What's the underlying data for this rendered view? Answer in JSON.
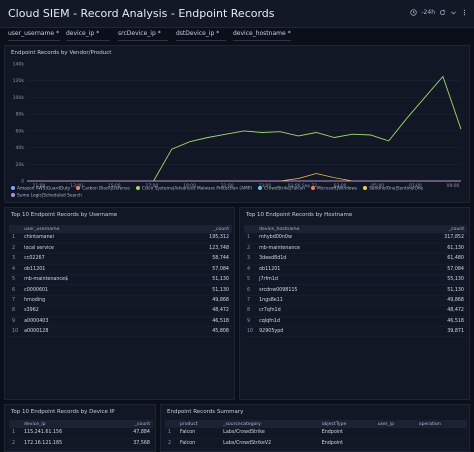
{
  "header": {
    "title": "Cloud SIEM - Record Analysis - Endpoint Records",
    "time_range": "-24h"
  },
  "filters": [
    {
      "label": "user_username"
    },
    {
      "label": "device_ip"
    },
    {
      "label": "srcDevice_ip"
    },
    {
      "label": "dstDevice_ip"
    },
    {
      "label": "device_hostname"
    }
  ],
  "vendor_panel": {
    "title": "Endpoint Records by Vendor/Product",
    "legend": [
      {
        "name": "Amazon AWS|GuardDuty",
        "color": "#7fa6ff"
      },
      {
        "name": "Carbon Black|Defense",
        "color": "#e08a7a"
      },
      {
        "name": "Cisco Systems|Advanced Malware Protection (AMP)",
        "color": "#9fd86b"
      },
      {
        "name": "CrowdStrike|Falcon",
        "color": "#5fc9e6"
      },
      {
        "name": "Microsoft|Windows",
        "color": "#f0805a"
      },
      {
        "name": "SentinelOne|SentinelOne",
        "color": "#f2c94c"
      },
      {
        "name": "Sumo Logic|Scheduled Search",
        "color": "#b28cf0"
      }
    ]
  },
  "chart_data": {
    "type": "line",
    "title": "Endpoint Records by Vendor/Product",
    "y_ticks": [
      "140k",
      "120k",
      "100k",
      "80k",
      "60k",
      "40k",
      "20k",
      "0"
    ],
    "ylim": [
      0,
      140000
    ],
    "x_ticks": [
      "11:00",
      "13:00",
      "15:00",
      "17:00",
      "19:00",
      "21:00",
      "23:00",
      "01:00 Sep 22",
      "03:00",
      "05:00",
      "07:00",
      "09:00"
    ],
    "x": [
      "10:00",
      "11:00",
      "12:00",
      "13:00",
      "14:00",
      "15:00",
      "16:00",
      "17:00",
      "18:00",
      "19:00",
      "20:00",
      "21:00",
      "22:00",
      "23:00",
      "00:00",
      "01:00",
      "02:00",
      "03:00",
      "04:00",
      "05:00",
      "06:00",
      "07:00",
      "08:00",
      "09:00",
      "10:00"
    ],
    "series": [
      {
        "name": "Amazon AWS|GuardDuty",
        "values": [
          0,
          0,
          0,
          0,
          0,
          0,
          0,
          0,
          0,
          0,
          0,
          0,
          0,
          0,
          0,
          0,
          0,
          0,
          0,
          0,
          0,
          0,
          0,
          0,
          0
        ]
      },
      {
        "name": "Carbon Black|Defense",
        "values": [
          0,
          0,
          0,
          0,
          0,
          0,
          0,
          0,
          0,
          0,
          0,
          0,
          0,
          0,
          0,
          0,
          0,
          0,
          0,
          0,
          0,
          0,
          0,
          0,
          0
        ]
      },
      {
        "name": "Cisco Systems|Advanced Malware Protection (AMP)",
        "values": [
          null,
          null,
          null,
          null,
          null,
          null,
          null,
          0,
          38000,
          47000,
          52000,
          56000,
          60000,
          58000,
          59000,
          54000,
          58000,
          52000,
          56000,
          55000,
          48000,
          75000,
          100000,
          125000,
          62000
        ]
      },
      {
        "name": "CrowdStrike|Falcon",
        "values": [
          0,
          0,
          0,
          0,
          0,
          0,
          0,
          0,
          0,
          0,
          0,
          0,
          0,
          0,
          0,
          0,
          0,
          0,
          0,
          0,
          0,
          0,
          0,
          0,
          0
        ]
      },
      {
        "name": "Microsoft|Windows",
        "values": [
          0,
          0,
          0,
          0,
          0,
          0,
          0,
          0,
          0,
          0,
          0,
          0,
          0,
          0,
          0,
          0,
          0,
          0,
          0,
          0,
          0,
          0,
          0,
          0,
          0
        ]
      },
      {
        "name": "SentinelOne|SentinelOne",
        "values": [
          0,
          0,
          0,
          0,
          0,
          0,
          0,
          0,
          0,
          0,
          0,
          0,
          0,
          0,
          0,
          3000,
          9000,
          4000,
          0,
          0,
          0,
          0,
          0,
          0,
          0
        ]
      },
      {
        "name": "Sumo Logic|Scheduled Search",
        "values": [
          0,
          0,
          0,
          0,
          0,
          0,
          0,
          0,
          0,
          0,
          0,
          0,
          0,
          0,
          0,
          0,
          0,
          0,
          0,
          0,
          0,
          0,
          0,
          0,
          0
        ]
      }
    ]
  },
  "top_users": {
    "title": "Top 10 Endpoint Records by Username",
    "columns": [
      "user_username",
      "_count"
    ],
    "rows": [
      [
        "1",
        "chintamanei",
        "195,312"
      ],
      [
        "2",
        "local service",
        "123,748"
      ],
      [
        "3",
        "cc02267",
        "58,744"
      ],
      [
        "4",
        "ob11201",
        "57,084"
      ],
      [
        "5",
        "mb-maintenance$",
        "51,130"
      ],
      [
        "6",
        "c0000601",
        "51,130"
      ],
      [
        "7",
        "hmoding",
        "49,868"
      ],
      [
        "8",
        "s3962",
        "48,472"
      ],
      [
        "9",
        "a0000403",
        "46,518"
      ],
      [
        "10",
        "a0000128",
        "45,808"
      ]
    ]
  },
  "top_hosts": {
    "title": "Top 10 Endpoint Records by Hostname",
    "columns": [
      "device_hostname",
      "_count"
    ],
    "rows": [
      [
        "1",
        "mhybd00n0w",
        "317,852"
      ],
      [
        "2",
        "mb-maintenance",
        "61,130"
      ],
      [
        "3",
        "3deed8d1d",
        "61,480"
      ],
      [
        "4",
        "ob11201",
        "57,084"
      ],
      [
        "5",
        "j7rfm1d",
        "55,130"
      ],
      [
        "6",
        "srcdnw0098115",
        "51,130"
      ],
      [
        "7",
        "1ngs8e11",
        "49,868"
      ],
      [
        "8",
        "cr7qfn1d",
        "48,472"
      ],
      [
        "9",
        "cqlqfn1d",
        "46,518"
      ],
      [
        "10",
        "92905ypd",
        "39,871"
      ]
    ]
  },
  "top_ips": {
    "title": "Top 10 Endpoint Records by Device IP",
    "columns": [
      "device_ip",
      "_count"
    ],
    "rows": [
      [
        "1",
        "115.241.61.156",
        "47,884"
      ],
      [
        "2",
        "172.16.121.185",
        "37,568"
      ]
    ]
  },
  "summary": {
    "title": "Endpoint Records Summary",
    "columns": [
      "product",
      "_sourcecategory",
      "objectType",
      "user_ip",
      "operation"
    ],
    "rows": [
      [
        "1",
        "Falcon",
        "Labs/CrowdStrike",
        "Endpoint",
        "",
        ""
      ],
      [
        "2",
        "Falcon",
        "Labs/CrowdStrikeV2",
        "Endpoint",
        "",
        ""
      ]
    ]
  }
}
